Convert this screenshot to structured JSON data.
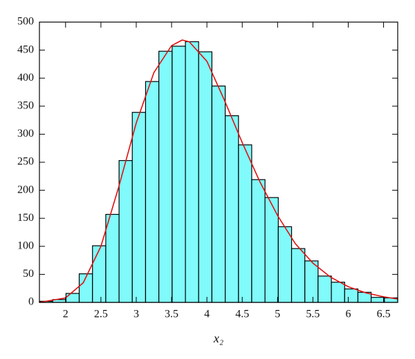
{
  "chart_data": {
    "type": "histogram",
    "xlabel": "x₂",
    "bins": [
      1.63,
      1.818,
      2.006,
      2.193,
      2.381,
      2.569,
      2.757,
      2.944,
      3.132,
      3.32,
      3.508,
      3.696,
      3.883,
      4.071,
      4.259,
      4.447,
      4.634,
      4.822,
      5.01,
      5.198,
      5.386,
      5.573,
      5.761,
      5.949,
      6.137,
      6.324,
      6.512,
      6.7
    ],
    "values": [
      2,
      5,
      16,
      51,
      101,
      157,
      253,
      339,
      394,
      448,
      457,
      465,
      447,
      386,
      333,
      281,
      219,
      187,
      135,
      96,
      74,
      47,
      36,
      24,
      18,
      9,
      8
    ],
    "color": "#80fafa",
    "fit": {
      "color": "#e01010",
      "x": [
        1.63,
        2.0,
        2.25,
        2.5,
        2.75,
        3.0,
        3.25,
        3.5,
        3.65,
        3.75,
        4.0,
        4.25,
        4.5,
        4.75,
        5.0,
        5.25,
        5.5,
        5.75,
        6.0,
        6.25,
        6.5,
        6.7
      ],
      "values": [
        0,
        8,
        35,
        100,
        205,
        320,
        410,
        458,
        468,
        465,
        430,
        360,
        285,
        215,
        155,
        105,
        70,
        45,
        28,
        17,
        10,
        6
      ]
    },
    "xlim": [
      1.63,
      6.7
    ],
    "ylim": [
      0,
      500
    ],
    "xticks": [
      2,
      2.5,
      3,
      3.5,
      4,
      4.5,
      5,
      5.5,
      6,
      6.5
    ],
    "yticks": [
      0,
      50,
      100,
      150,
      200,
      250,
      300,
      350,
      400,
      450,
      500
    ]
  }
}
